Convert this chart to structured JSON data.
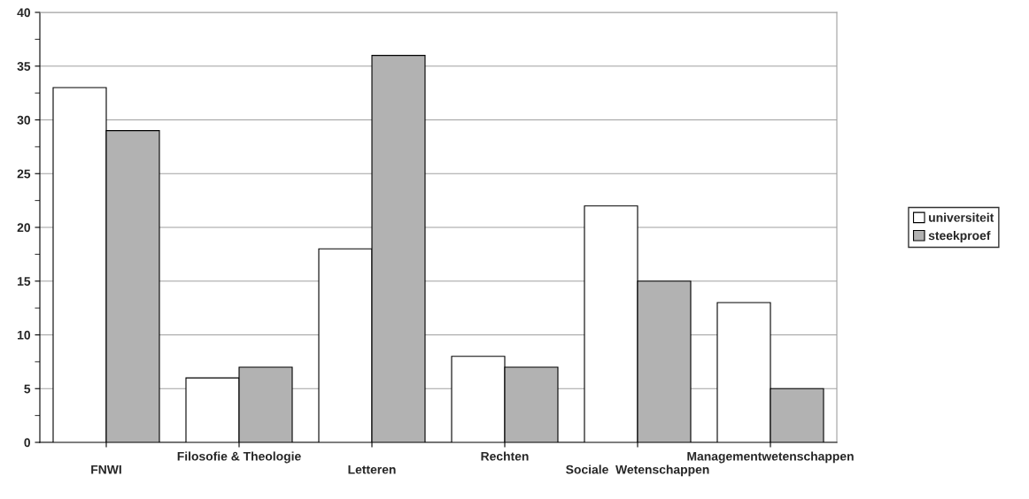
{
  "chart_data": {
    "type": "bar",
    "categories": [
      "FNWI",
      "Filosofie & Theologie",
      "Letteren",
      "Rechten",
      "Sociale  Wetenschappen",
      "Managementwetenschappen"
    ],
    "series": [
      {
        "name": "universiteit",
        "color": "#ffffff",
        "values": [
          33,
          6,
          18,
          8,
          22,
          13
        ]
      },
      {
        "name": "steekproef",
        "color": "#b2b2b2",
        "values": [
          29,
          7,
          36,
          7,
          15,
          5
        ]
      }
    ],
    "ylim": [
      0,
      40
    ],
    "yticks": [
      0,
      5,
      10,
      15,
      20,
      25,
      30,
      35,
      40
    ],
    "grid": "y",
    "legend": "right"
  }
}
